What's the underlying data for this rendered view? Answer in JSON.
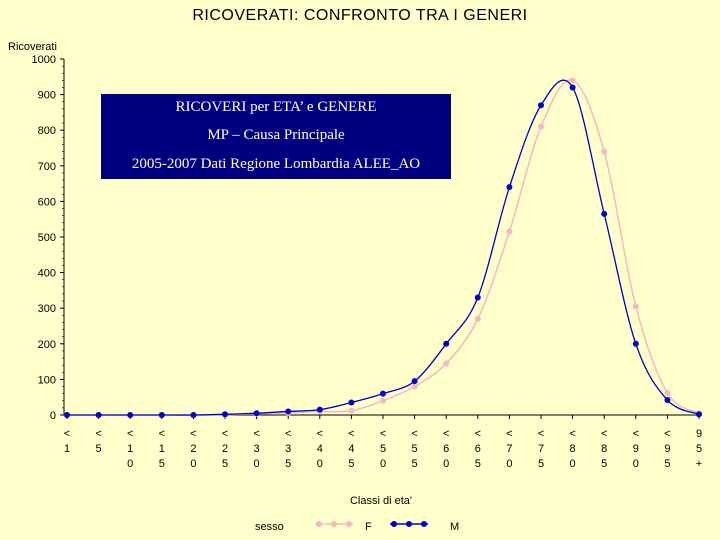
{
  "info_box": {
    "line1": "RICOVERI  per ETA’ e GENERE",
    "line2": "MP – Causa Principale",
    "line3": "2005-2007 Dati Regione Lombardia ALEE_AO"
  },
  "chart_data": {
    "type": "line",
    "title": "RICOVERATI: CONFRONTO TRA I GENERI",
    "ylabel": "Ricoverati",
    "xlabel": "Classi di eta'",
    "ylim": [
      0,
      1000
    ],
    "yticks": [
      0,
      100,
      200,
      300,
      400,
      500,
      600,
      700,
      800,
      900,
      1000
    ],
    "categories": [
      "< 1",
      "< 5",
      "< 10",
      "< 15",
      "< 20",
      "< 25",
      "< 30",
      "< 35",
      "< 40",
      "< 45",
      "< 50",
      "< 55",
      "< 60",
      "< 65",
      "< 70",
      "< 75",
      "< 80",
      "< 85",
      "< 90",
      "< 95",
      "95 +"
    ],
    "tick_labels": [
      [
        "<",
        "1"
      ],
      [
        "<",
        "5"
      ],
      [
        "<",
        "1",
        "0"
      ],
      [
        "<",
        "1",
        "5"
      ],
      [
        "<",
        "2",
        "0"
      ],
      [
        "<",
        "2",
        "5"
      ],
      [
        "<",
        "3",
        "0"
      ],
      [
        "<",
        "3",
        "5"
      ],
      [
        "<",
        "4",
        "0"
      ],
      [
        "<",
        "4",
        "5"
      ],
      [
        "<",
        "5",
        "0"
      ],
      [
        "<",
        "5",
        "5"
      ],
      [
        "<",
        "6",
        "0"
      ],
      [
        "<",
        "6",
        "5"
      ],
      [
        "<",
        "7",
        "0"
      ],
      [
        "<",
        "7",
        "5"
      ],
      [
        "<",
        "8",
        "0"
      ],
      [
        "<",
        "8",
        "5"
      ],
      [
        "<",
        "9",
        "0"
      ],
      [
        "<",
        "9",
        "5"
      ],
      [
        "9",
        "5",
        "+"
      ]
    ],
    "legend_label": "sesso",
    "series": [
      {
        "name": "F",
        "color": "#f4b8c4",
        "values": [
          0,
          0,
          0,
          0,
          0,
          1,
          3,
          6,
          10,
          12,
          40,
          80,
          145,
          270,
          515,
          810,
          940,
          740,
          305,
          62,
          5
        ]
      },
      {
        "name": "M",
        "color": "#0000cc",
        "values": [
          0,
          0,
          0,
          0,
          0,
          2,
          5,
          10,
          15,
          35,
          60,
          95,
          200,
          330,
          640,
          870,
          920,
          565,
          200,
          42,
          2
        ]
      }
    ],
    "grid": false,
    "legend_position": "bottom"
  }
}
